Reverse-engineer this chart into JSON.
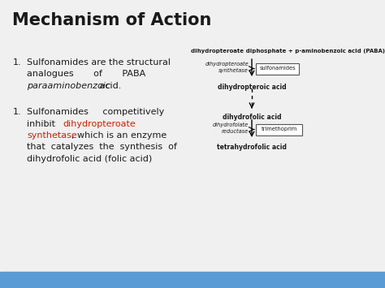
{
  "title": "Mechanism of Action",
  "bg_color": "#f0f0f0",
  "footer_color": "#5b9bd5",
  "text_color": "#1a1a1a",
  "red_color": "#cc2200",
  "diagram": {
    "top_label": "dihydropteroate diphosphate + p-aminobenzoic acid (PABA)",
    "box1_label": "sulfonamides",
    "enzyme1_label": "dihydropteroate\nsynthetase",
    "mid_label": "dihydropteroic acid",
    "mid2_label": "dihydrofolic acid",
    "enzyme2_label": "dihydrofolate\nreductase",
    "box2_label": "trimethoprim",
    "bottom_label": "tetrahydrofolic acid"
  }
}
